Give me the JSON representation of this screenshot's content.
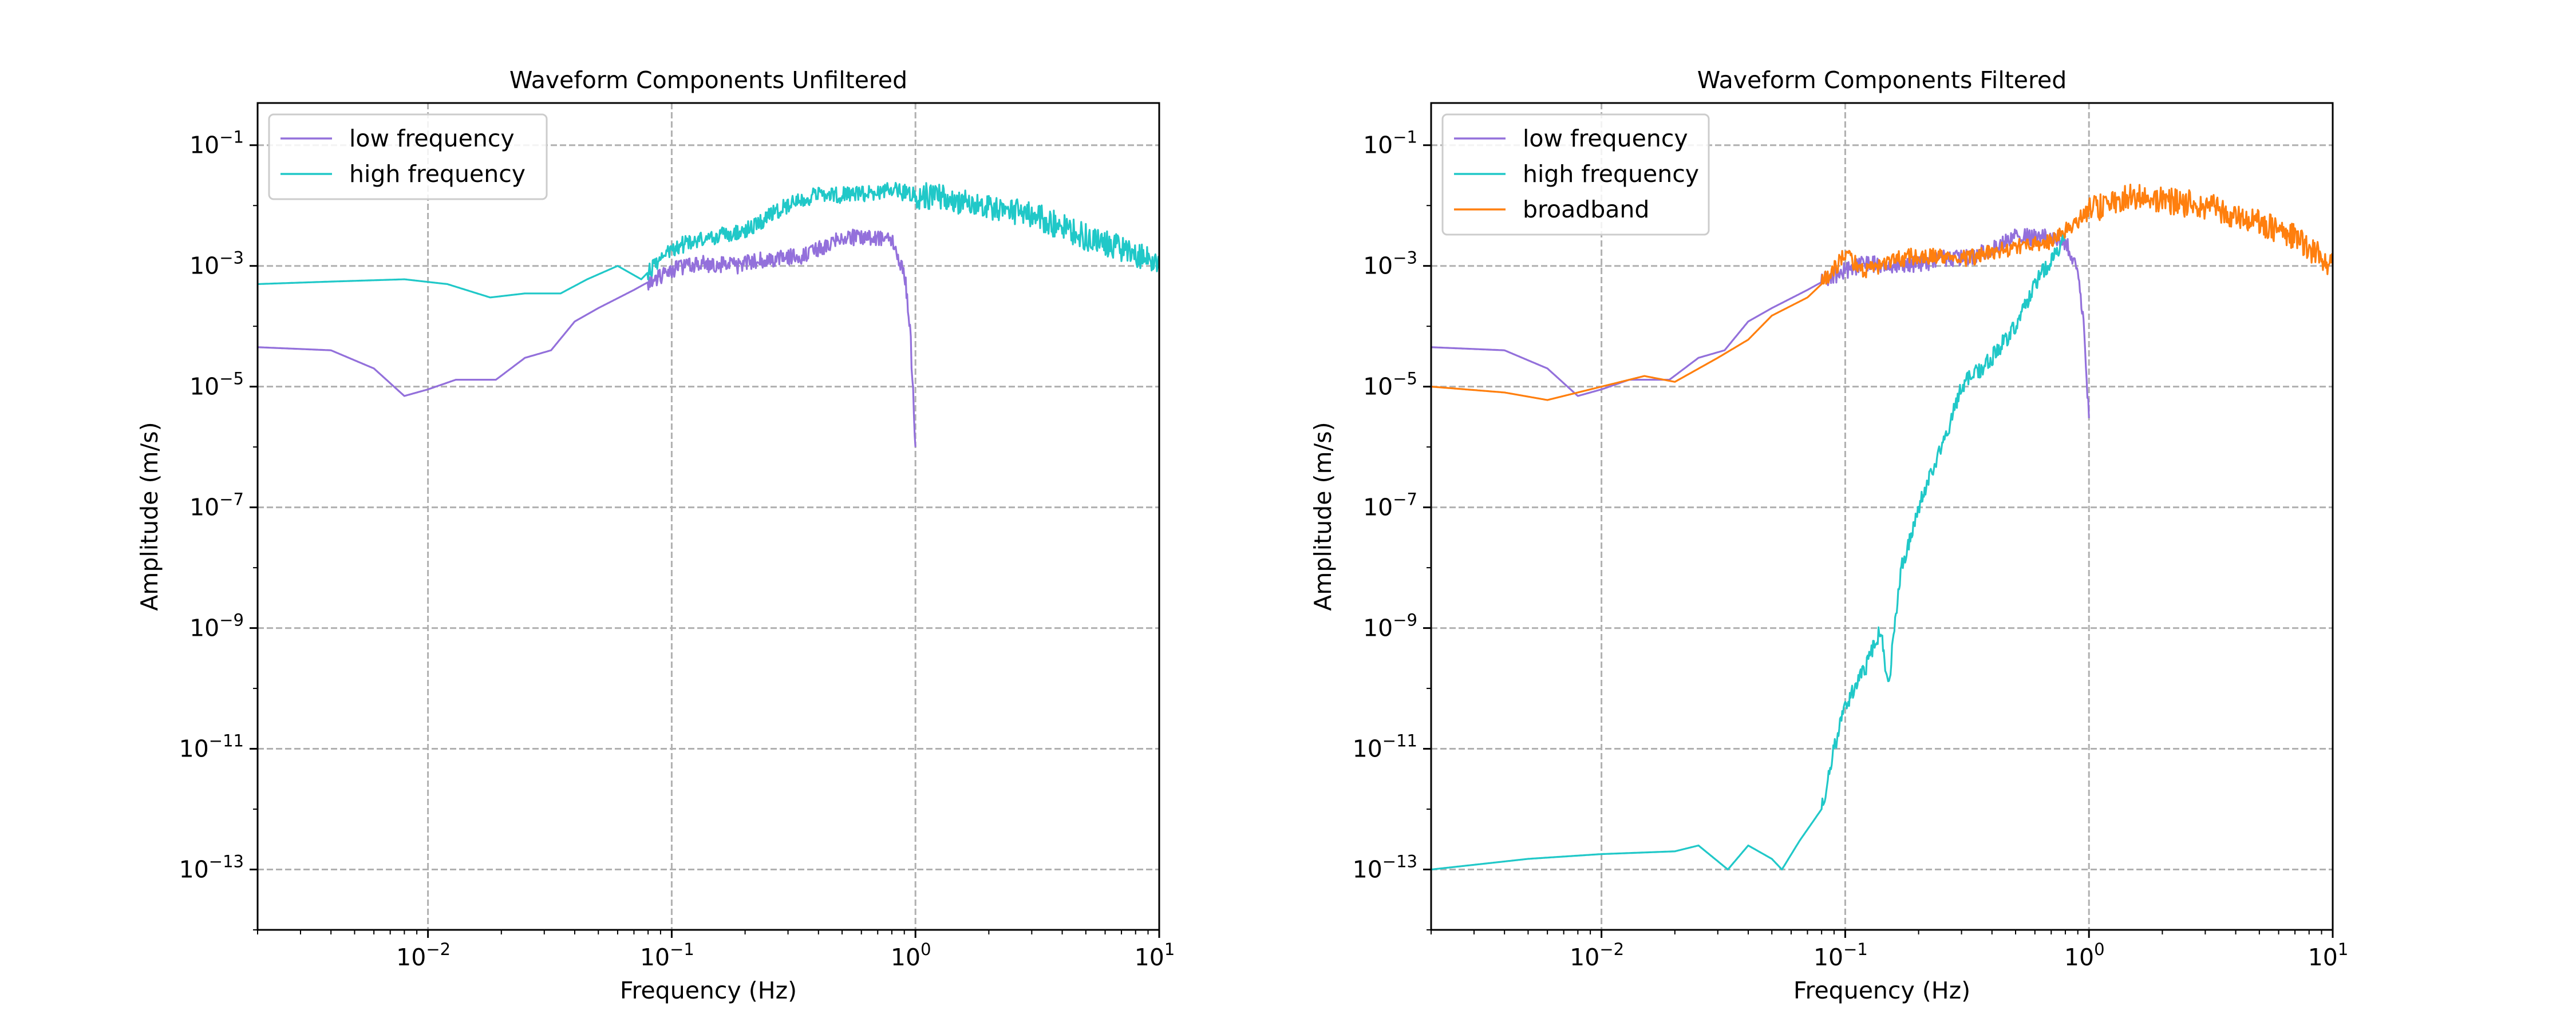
{
  "chart_data": [
    {
      "type": "line",
      "title": "Waveform Components Unfiltered",
      "xlabel": "Frequency (Hz)",
      "ylabel": "Amplitude (m/s)",
      "xscale": "log",
      "yscale": "log",
      "xlim": [
        0.002,
        10
      ],
      "ylim": [
        1e-14,
        0.5
      ],
      "xticks": [
        {
          "value": 0.01,
          "base": "10",
          "exp": "−2"
        },
        {
          "value": 0.1,
          "base": "10",
          "exp": "−1"
        },
        {
          "value": 1,
          "base": "10",
          "exp": "0"
        },
        {
          "value": 10,
          "base": "10",
          "exp": "1"
        }
      ],
      "yticks": [
        {
          "value": 0.1,
          "base": "10",
          "exp": "−1"
        },
        {
          "value": 0.001,
          "base": "10",
          "exp": "−3"
        },
        {
          "value": 1e-05,
          "base": "10",
          "exp": "−5"
        },
        {
          "value": 1e-07,
          "base": "10",
          "exp": "−7"
        },
        {
          "value": 1e-09,
          "base": "10",
          "exp": "−9"
        },
        {
          "value": 1e-11,
          "base": "10",
          "exp": "−11"
        },
        {
          "value": 1e-13,
          "base": "10",
          "exp": "−13"
        }
      ],
      "grid": true,
      "legend_position": "top-left",
      "series": [
        {
          "name": "low frequency",
          "color": "#9370DB",
          "points": [
            [
              0.002,
              4.5e-05
            ],
            [
              0.004,
              4e-05
            ],
            [
              0.006,
              2e-05
            ],
            [
              0.008,
              7e-06
            ],
            [
              0.01,
              9e-06
            ],
            [
              0.013,
              1.3e-05
            ],
            [
              0.019,
              1.3e-05
            ],
            [
              0.025,
              3e-05
            ],
            [
              0.032,
              4e-05
            ],
            [
              0.04,
              0.00012
            ],
            [
              0.05,
              0.0002
            ],
            [
              0.07,
              0.0004
            ],
            [
              0.09,
              0.0007
            ],
            [
              0.12,
              0.0011
            ],
            [
              0.18,
              0.001
            ],
            [
              0.25,
              0.0013
            ],
            [
              0.35,
              0.0015
            ],
            [
              0.5,
              0.003
            ],
            [
              0.65,
              0.003
            ],
            [
              0.8,
              0.0025
            ],
            [
              0.9,
              0.0008
            ],
            [
              0.95,
              0.0001
            ],
            [
              1.0,
              1e-06
            ]
          ]
        },
        {
          "name": "high frequency",
          "color": "#20C8C8",
          "points": [
            [
              0.002,
              0.0005
            ],
            [
              0.004,
              0.00055
            ],
            [
              0.008,
              0.0006
            ],
            [
              0.012,
              0.0005
            ],
            [
              0.018,
              0.0003
            ],
            [
              0.025,
              0.00035
            ],
            [
              0.035,
              0.00035
            ],
            [
              0.045,
              0.0006
            ],
            [
              0.06,
              0.001
            ],
            [
              0.075,
              0.0006
            ],
            [
              0.1,
              0.002
            ],
            [
              0.15,
              0.003
            ],
            [
              0.2,
              0.004
            ],
            [
              0.3,
              0.01
            ],
            [
              0.4,
              0.015
            ],
            [
              0.6,
              0.015
            ],
            [
              0.8,
              0.018
            ],
            [
              1.0,
              0.015
            ],
            [
              1.5,
              0.012
            ],
            [
              2,
              0.01
            ],
            [
              3,
              0.007
            ],
            [
              5,
              0.003
            ],
            [
              7,
              0.002
            ],
            [
              10,
              0.001
            ]
          ]
        }
      ]
    },
    {
      "type": "line",
      "title": "Waveform Components Filtered",
      "xlabel": "Frequency (Hz)",
      "ylabel": "Amplitude (m/s)",
      "xscale": "log",
      "yscale": "log",
      "xlim": [
        0.002,
        10
      ],
      "ylim": [
        1e-14,
        0.5
      ],
      "xticks": [
        {
          "value": 0.01,
          "base": "10",
          "exp": "−2"
        },
        {
          "value": 0.1,
          "base": "10",
          "exp": "−1"
        },
        {
          "value": 1,
          "base": "10",
          "exp": "0"
        },
        {
          "value": 10,
          "base": "10",
          "exp": "1"
        }
      ],
      "yticks": [
        {
          "value": 0.1,
          "base": "10",
          "exp": "−1"
        },
        {
          "value": 0.001,
          "base": "10",
          "exp": "−3"
        },
        {
          "value": 1e-05,
          "base": "10",
          "exp": "−5"
        },
        {
          "value": 1e-07,
          "base": "10",
          "exp": "−7"
        },
        {
          "value": 1e-09,
          "base": "10",
          "exp": "−9"
        },
        {
          "value": 1e-11,
          "base": "10",
          "exp": "−11"
        },
        {
          "value": 1e-13,
          "base": "10",
          "exp": "−13"
        }
      ],
      "grid": true,
      "legend_position": "top-left",
      "series": [
        {
          "name": "low frequency",
          "color": "#9370DB",
          "points": [
            [
              0.002,
              4.5e-05
            ],
            [
              0.004,
              4e-05
            ],
            [
              0.006,
              2e-05
            ],
            [
              0.008,
              7e-06
            ],
            [
              0.01,
              9e-06
            ],
            [
              0.013,
              1.3e-05
            ],
            [
              0.019,
              1.3e-05
            ],
            [
              0.025,
              3e-05
            ],
            [
              0.032,
              4e-05
            ],
            [
              0.04,
              0.00012
            ],
            [
              0.05,
              0.0002
            ],
            [
              0.07,
              0.0004
            ],
            [
              0.09,
              0.0007
            ],
            [
              0.12,
              0.0011
            ],
            [
              0.18,
              0.001
            ],
            [
              0.25,
              0.0013
            ],
            [
              0.35,
              0.0015
            ],
            [
              0.5,
              0.003
            ],
            [
              0.65,
              0.003
            ],
            [
              0.8,
              0.0025
            ],
            [
              0.9,
              0.0008
            ],
            [
              0.95,
              0.0001
            ],
            [
              1.0,
              3e-06
            ]
          ]
        },
        {
          "name": "high frequency",
          "color": "#20C8C8",
          "points": [
            [
              0.002,
              1e-13
            ],
            [
              0.005,
              1.5e-13
            ],
            [
              0.01,
              1.8e-13
            ],
            [
              0.02,
              2e-13
            ],
            [
              0.025,
              2.5e-13
            ],
            [
              0.033,
              1e-13
            ],
            [
              0.04,
              2.5e-13
            ],
            [
              0.05,
              1.5e-13
            ],
            [
              0.055,
              1e-13
            ],
            [
              0.065,
              3e-13
            ],
            [
              0.08,
              1e-12
            ],
            [
              0.09,
              1e-11
            ],
            [
              0.1,
              5e-11
            ],
            [
              0.12,
              2e-10
            ],
            [
              0.14,
              1e-09
            ],
            [
              0.15,
              1e-10
            ],
            [
              0.17,
              1e-08
            ],
            [
              0.2,
              1e-07
            ],
            [
              0.25,
              1e-06
            ],
            [
              0.3,
              1e-05
            ],
            [
              0.4,
              3e-05
            ],
            [
              0.5,
              0.0001
            ],
            [
              0.6,
              0.0005
            ],
            [
              0.8,
              0.003
            ]
          ]
        },
        {
          "name": "broadband",
          "color": "#FF7F0E",
          "points": [
            [
              0.002,
              1e-05
            ],
            [
              0.004,
              8e-06
            ],
            [
              0.006,
              6e-06
            ],
            [
              0.01,
              1e-05
            ],
            [
              0.015,
              1.5e-05
            ],
            [
              0.02,
              1.2e-05
            ],
            [
              0.03,
              3e-05
            ],
            [
              0.04,
              6e-05
            ],
            [
              0.05,
              0.00015
            ],
            [
              0.07,
              0.0003
            ],
            [
              0.08,
              0.0005
            ],
            [
              0.1,
              0.0015
            ],
            [
              0.12,
              0.0008
            ],
            [
              0.15,
              0.0012
            ],
            [
              0.2,
              0.0015
            ],
            [
              0.3,
              0.0013
            ],
            [
              0.5,
              0.002
            ],
            [
              0.7,
              0.0025
            ],
            [
              1.0,
              0.008
            ],
            [
              1.5,
              0.015
            ],
            [
              2,
              0.012
            ],
            [
              3,
              0.01
            ],
            [
              5,
              0.005
            ],
            [
              7,
              0.003
            ],
            [
              10,
              0.001
            ]
          ]
        }
      ]
    }
  ]
}
